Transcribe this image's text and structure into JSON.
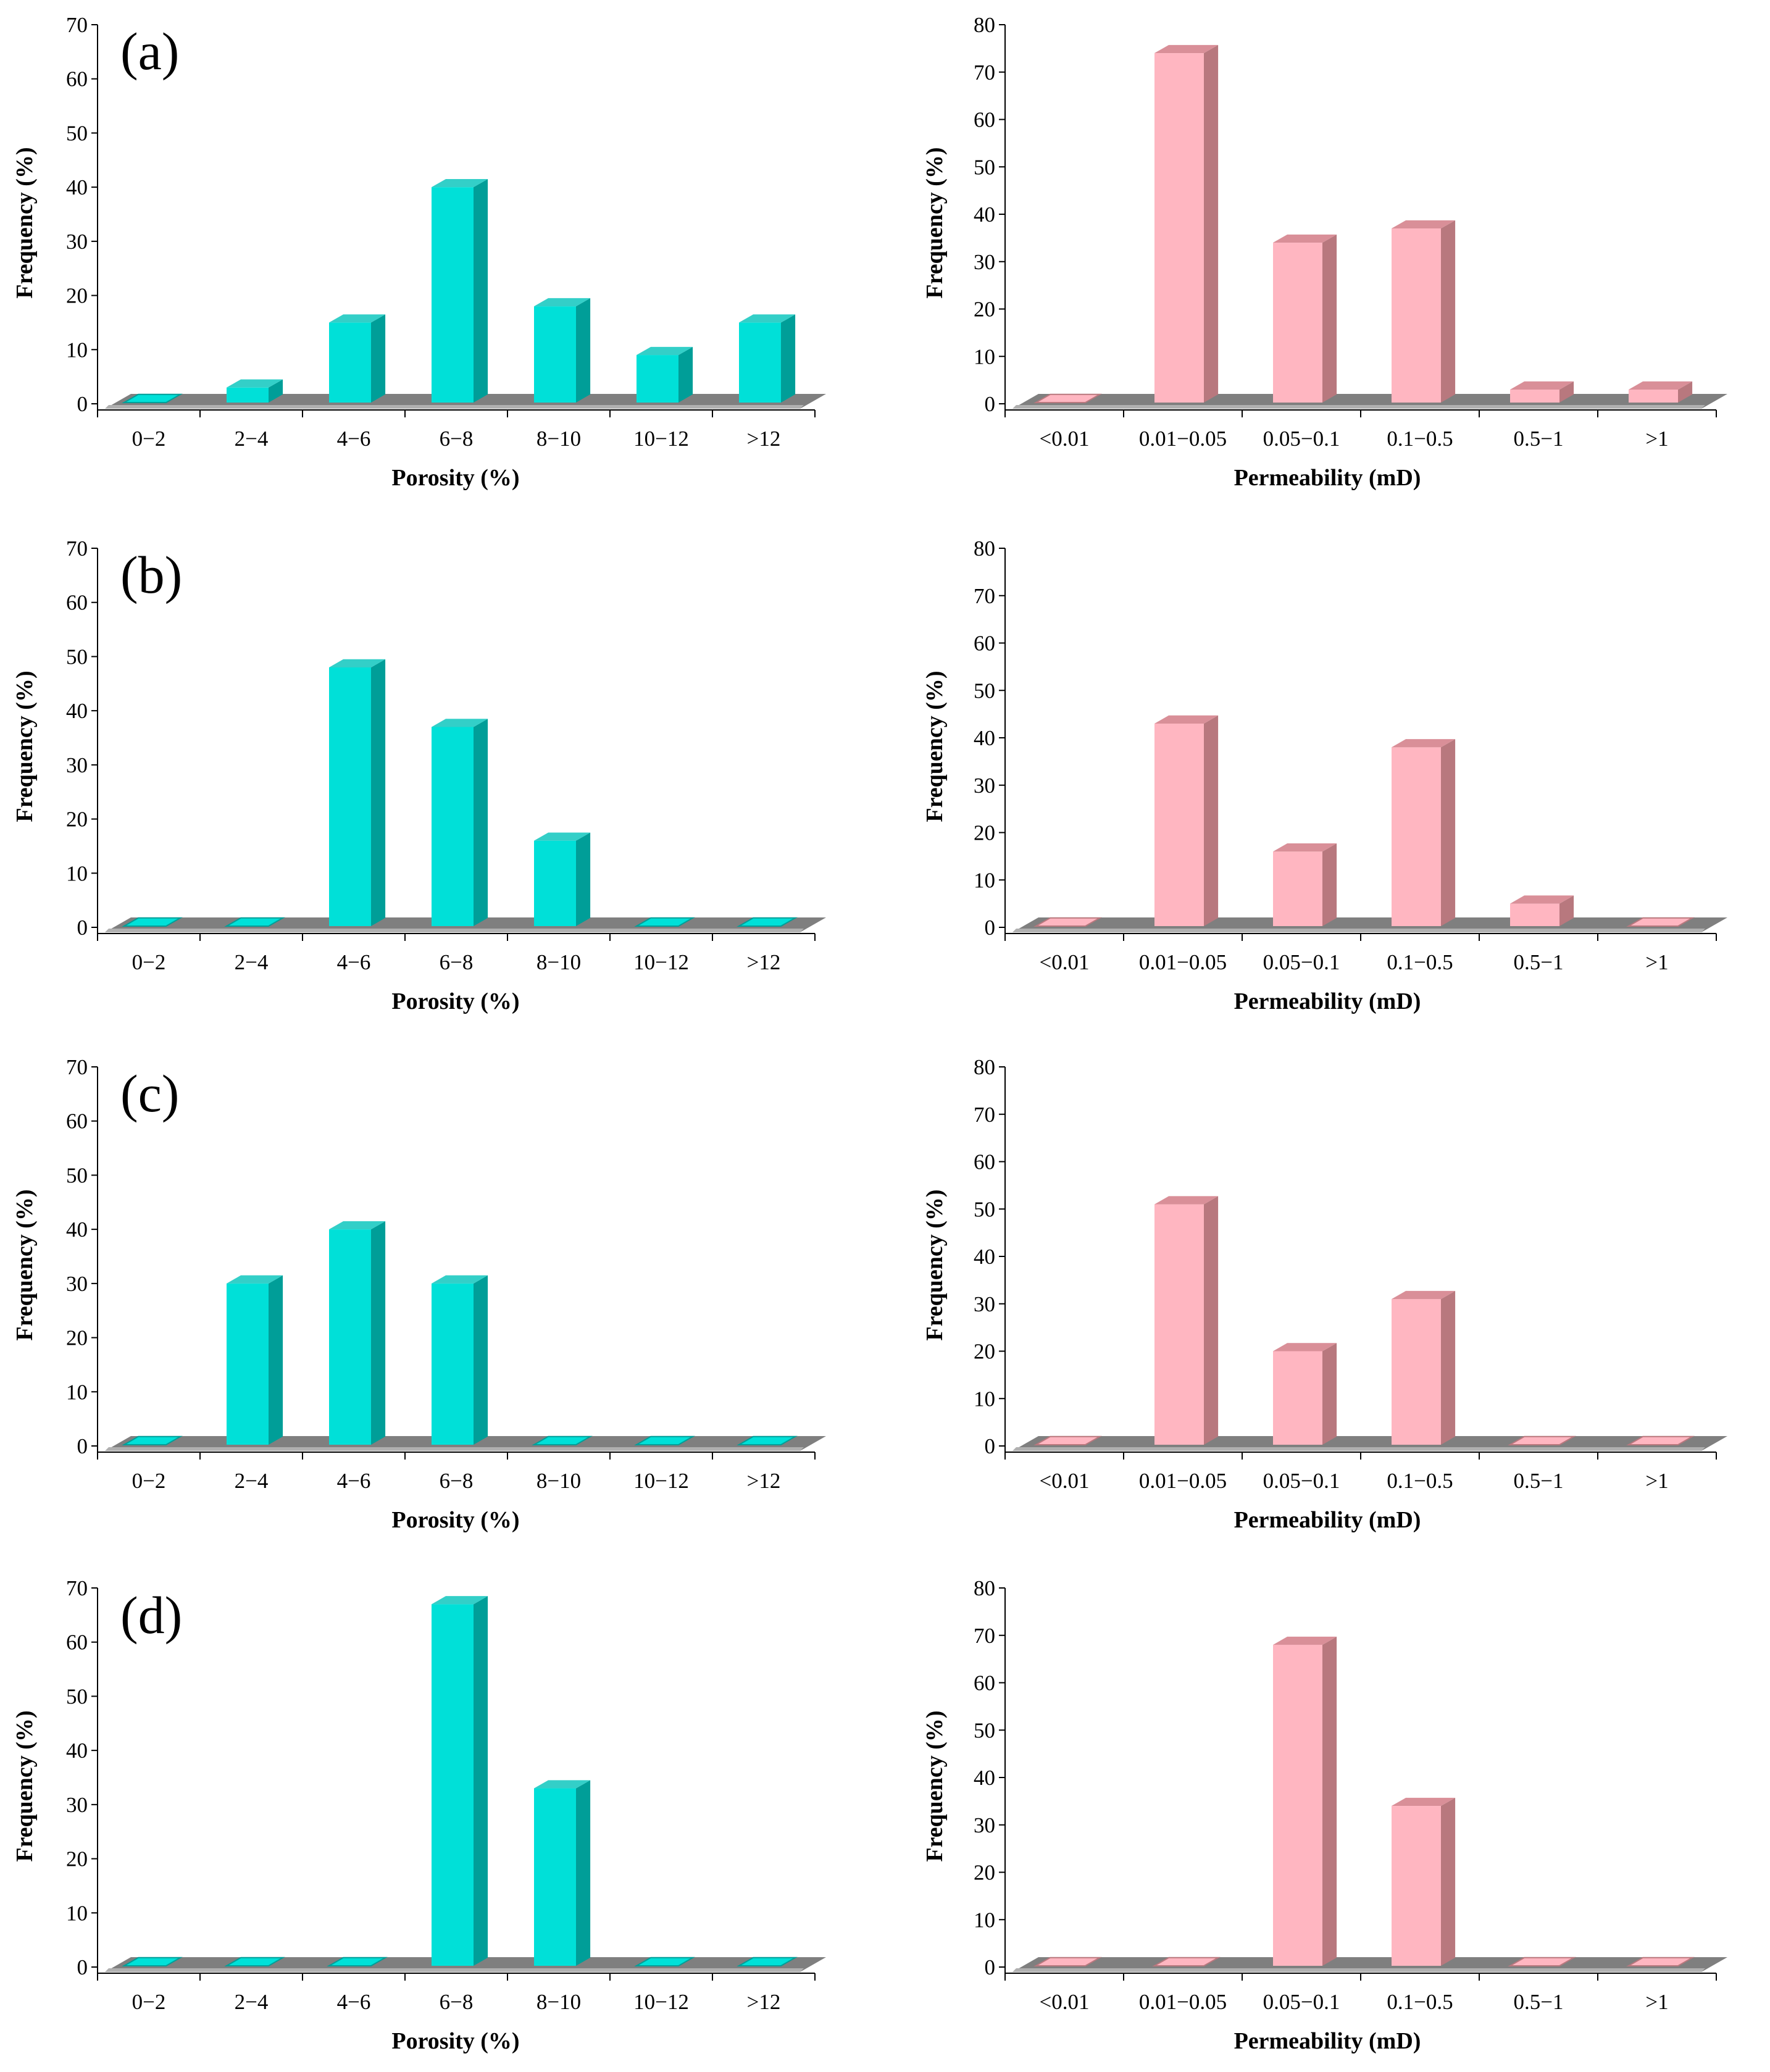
{
  "colors": {
    "porosity_front": "#00e0d8",
    "porosity_side": "#009e98",
    "porosity_top": "#33cfc8",
    "permeability_front": "#ffb6c1",
    "permeability_side": "#b8787e",
    "permeability_top": "#d98f98",
    "floor": "#7f7f7f",
    "floor_light": "#b0b0b0"
  },
  "chart_data": [
    {
      "panel": "(a)",
      "type": "bar",
      "variable": "porosity",
      "categories": [
        "0−2",
        "2−4",
        "4−6",
        "6−8",
        "8−10",
        "10−12",
        ">12"
      ],
      "values": [
        0,
        3,
        15,
        40,
        18,
        9,
        15
      ],
      "xlabel": "Porosity (%)",
      "ylabel": "Frequency (%)",
      "ylim": [
        0,
        70
      ],
      "yticks": [
        "0",
        "10",
        "20",
        "30",
        "40",
        "50",
        "60",
        "70"
      ]
    },
    {
      "panel": "",
      "type": "bar",
      "variable": "permeability",
      "categories": [
        "<0.01",
        "0.01−0.05",
        "0.05−0.1",
        "0.1−0.5",
        "0.5−1",
        ">1"
      ],
      "values": [
        0,
        74,
        34,
        37,
        3,
        3
      ],
      "xlabel": "Permeability (mD)",
      "ylabel": "Frequency (%)",
      "ylim": [
        0,
        80
      ],
      "yticks": [
        "0",
        "10",
        "20",
        "30",
        "40",
        "50",
        "60",
        "70",
        "80"
      ]
    },
    {
      "panel": "(b)",
      "type": "bar",
      "variable": "porosity",
      "categories": [
        "0−2",
        "2−4",
        "4−6",
        "6−8",
        "8−10",
        "10−12",
        ">12"
      ],
      "values": [
        0,
        0,
        48,
        37,
        16,
        0,
        0
      ],
      "xlabel": "Porosity (%)",
      "ylabel": "Frequency (%)",
      "ylim": [
        0,
        70
      ],
      "yticks": [
        "0",
        "10",
        "20",
        "30",
        "40",
        "50",
        "60",
        "70"
      ]
    },
    {
      "panel": "",
      "type": "bar",
      "variable": "permeability",
      "categories": [
        "<0.01",
        "0.01−0.05",
        "0.05−0.1",
        "0.1−0.5",
        "0.5−1",
        ">1"
      ],
      "values": [
        0,
        43,
        16,
        38,
        5,
        0
      ],
      "xlabel": "Permeability (mD)",
      "ylabel": "Frequency (%)",
      "ylim": [
        0,
        80
      ],
      "yticks": [
        "0",
        "10",
        "20",
        "30",
        "40",
        "50",
        "60",
        "70",
        "80"
      ]
    },
    {
      "panel": "(c)",
      "type": "bar",
      "variable": "porosity",
      "categories": [
        "0−2",
        "2−4",
        "4−6",
        "6−8",
        "8−10",
        "10−12",
        ">12"
      ],
      "values": [
        0,
        30,
        40,
        30,
        0,
        0,
        0
      ],
      "xlabel": "Porosity (%)",
      "ylabel": "Frequency (%)",
      "ylim": [
        0,
        70
      ],
      "yticks": [
        "0",
        "10",
        "20",
        "30",
        "40",
        "50",
        "60",
        "70"
      ]
    },
    {
      "panel": "",
      "type": "bar",
      "variable": "permeability",
      "categories": [
        "<0.01",
        "0.01−0.05",
        "0.05−0.1",
        "0.1−0.5",
        "0.5−1",
        ">1"
      ],
      "values": [
        0,
        51,
        20,
        31,
        0,
        0
      ],
      "xlabel": "Permeability (mD)",
      "ylabel": "Frequency (%)",
      "ylim": [
        0,
        80
      ],
      "yticks": [
        "0",
        "10",
        "20",
        "30",
        "40",
        "50",
        "60",
        "70",
        "80"
      ]
    },
    {
      "panel": "(d)",
      "type": "bar",
      "variable": "porosity",
      "categories": [
        "0−2",
        "2−4",
        "4−6",
        "6−8",
        "8−10",
        "10−12",
        ">12"
      ],
      "values": [
        0,
        0,
        0,
        67,
        33,
        0,
        0
      ],
      "xlabel": "Porosity (%)",
      "ylabel": "Frequency (%)",
      "ylim": [
        0,
        70
      ],
      "yticks": [
        "0",
        "10",
        "20",
        "30",
        "40",
        "50",
        "60",
        "70"
      ]
    },
    {
      "panel": "",
      "type": "bar",
      "variable": "permeability",
      "categories": [
        "<0.01",
        "0.01−0.05",
        "0.05−0.1",
        "0.1−0.5",
        "0.5−1",
        ">1"
      ],
      "values": [
        0,
        0,
        68,
        34,
        0,
        0
      ],
      "xlabel": "Permeability (mD)",
      "ylabel": "Frequency (%)",
      "ylim": [
        0,
        80
      ],
      "yticks": [
        "0",
        "10",
        "20",
        "30",
        "40",
        "50",
        "60",
        "70",
        "80"
      ]
    }
  ]
}
